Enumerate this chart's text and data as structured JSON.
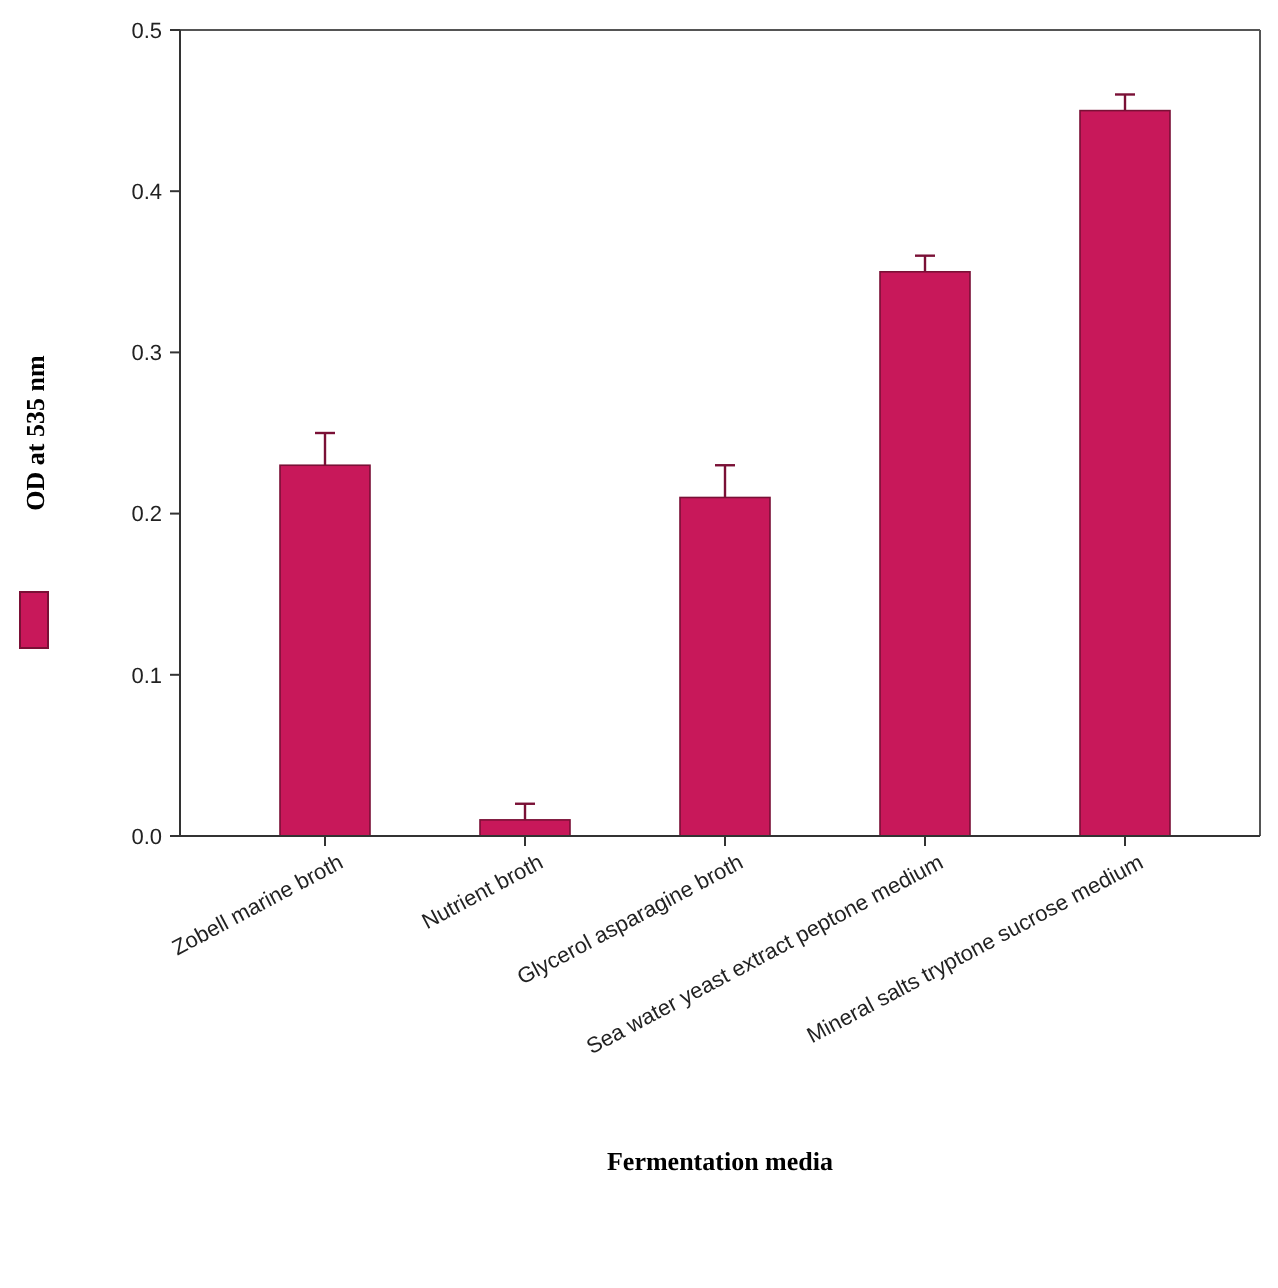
{
  "chart_data": {
    "type": "bar",
    "xlabel": "Fermentation media",
    "ylabel": "OD at 535 nm",
    "categories": [
      "Zobell marine broth",
      "Nutrient broth",
      "Glycerol asparagine broth",
      "Sea water yeast extract peptone medium",
      "Mineral salts tryptone sucrose medium"
    ],
    "values": [
      0.23,
      0.01,
      0.21,
      0.35,
      0.45
    ],
    "errors": [
      [
        0.23,
        0.25
      ],
      [
        0.01,
        0.02
      ],
      [
        0.21,
        0.23
      ],
      [
        0.35,
        0.36
      ],
      [
        0.45,
        0.46
      ]
    ],
    "color": "#c8185a",
    "ylim": [
      0,
      0.5
    ],
    "yticks": [
      {
        "value": 0,
        "label": "0.0"
      },
      0.1,
      0.2,
      0.3,
      0.4,
      0.5
    ]
  }
}
